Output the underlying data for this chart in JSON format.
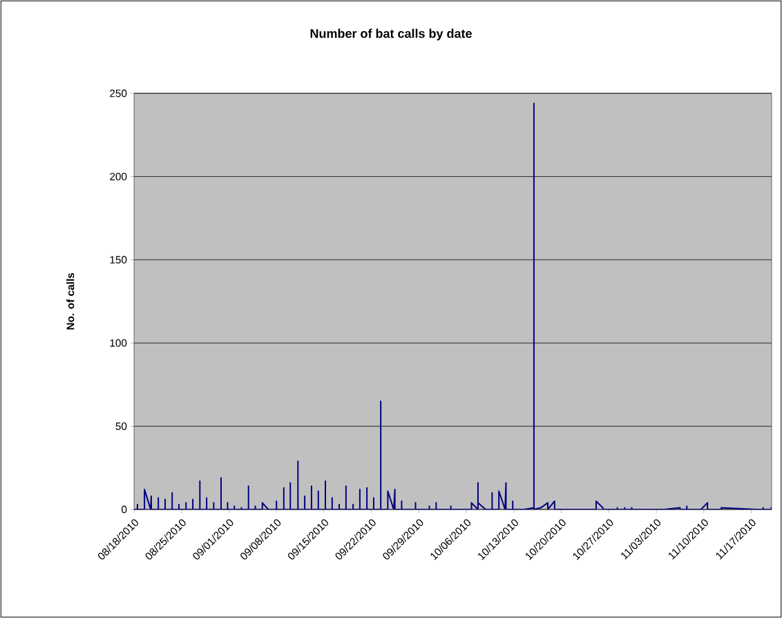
{
  "chart_data": {
    "type": "line",
    "title": "Number of bat calls by date",
    "ylabel": "No. of calls",
    "color": "#000080",
    "x": [
      "2010-08-18T00:00",
      "2010-08-18T12:00",
      "2010-08-18T12:00",
      "2010-08-18T12:00",
      "2010-08-19T13:00",
      "2010-08-19T13:00",
      "2010-08-20T11:00",
      "2010-08-20T13:00",
      "2010-08-20T13:00",
      "2010-08-21T14:00",
      "2010-08-21T14:00",
      "2010-08-21T14:00",
      "2010-08-22T14:00",
      "2010-08-22T14:00",
      "2010-08-22T14:00",
      "2010-08-23T15:00",
      "2010-08-23T15:00",
      "2010-08-23T15:00",
      "2010-08-24T15:00",
      "2010-08-24T15:00",
      "2010-08-24T15:00",
      "2010-08-25T16:00",
      "2010-08-25T16:00",
      "2010-08-25T16:00",
      "2010-08-26T16:00",
      "2010-08-26T16:00",
      "2010-08-26T16:00",
      "2010-08-27T17:00",
      "2010-08-27T17:00",
      "2010-08-27T17:00",
      "2010-08-28T17:00",
      "2010-08-28T17:00",
      "2010-08-28T17:00",
      "2010-08-29T18:00",
      "2010-08-29T18:00",
      "2010-08-29T18:00",
      "2010-08-30T20:00",
      "2010-08-30T20:00",
      "2010-08-30T20:00",
      "2010-08-31T19:00",
      "2010-08-31T19:00",
      "2010-08-31T19:00",
      "2010-09-01T19:00",
      "2010-09-01T19:00",
      "2010-09-01T19:00",
      "2010-09-02T20:00",
      "2010-09-02T20:00",
      "2010-09-02T20:00",
      "2010-09-03T21:00",
      "2010-09-03T21:00",
      "2010-09-03T21:00",
      "2010-09-04T21:00",
      "2010-09-04T21:00",
      "2010-09-04T21:00",
      "2010-09-05T22:00",
      "2010-09-05T22:00",
      "2010-09-06T19:00",
      "2010-09-08T00:00",
      "2010-09-08T00:00",
      "2010-09-08T00:00",
      "2010-09-09T02:00",
      "2010-09-09T02:00",
      "2010-09-09T02:00",
      "2010-09-10T01:00",
      "2010-09-10T01:00",
      "2010-09-10T01:00",
      "2010-09-11T04:00",
      "2010-09-11T04:00",
      "2010-09-11T04:00",
      "2010-09-12T04:00",
      "2010-09-12T04:00",
      "2010-09-12T04:00",
      "2010-09-13T04:00",
      "2010-09-13T04:00",
      "2010-09-13T04:00",
      "2010-09-14T04:00",
      "2010-09-14T04:00",
      "2010-09-14T04:00",
      "2010-09-15T05:00",
      "2010-09-15T05:00",
      "2010-09-15T05:00",
      "2010-09-16T05:00",
      "2010-09-16T05:00",
      "2010-09-16T05:00",
      "2010-09-17T06:00",
      "2010-09-17T06:00",
      "2010-09-17T06:00",
      "2010-09-18T06:00",
      "2010-09-18T06:00",
      "2010-09-18T06:00",
      "2010-09-19T07:00",
      "2010-09-19T07:00",
      "2010-09-19T07:00",
      "2010-09-20T07:00",
      "2010-09-20T07:00",
      "2010-09-20T07:00",
      "2010-09-21T08:00",
      "2010-09-21T08:00",
      "2010-09-21T08:00",
      "2010-09-22T08:00",
      "2010-09-22T08:00",
      "2010-09-22T08:00",
      "2010-09-23T09:00",
      "2010-09-23T09:00",
      "2010-09-23T09:00",
      "2010-09-24T10:00",
      "2010-09-24T10:00",
      "2010-09-25T07:00",
      "2010-09-25T11:00",
      "2010-09-25T11:00",
      "2010-09-26T11:00",
      "2010-09-26T11:00",
      "2010-09-26T11:00",
      "2010-09-28T12:00",
      "2010-09-28T12:00",
      "2010-09-28T12:00",
      "2010-09-30T13:00",
      "2010-09-30T13:00",
      "2010-09-30T13:00",
      "2010-10-01T13:00",
      "2010-10-01T13:00",
      "2010-10-01T13:00",
      "2010-10-03T17:00",
      "2010-10-03T17:00",
      "2010-10-03T17:00",
      "2010-10-06T18:00",
      "2010-10-06T18:00",
      "2010-10-07T17:00",
      "2010-10-07T17:00",
      "2010-10-07T17:00",
      "2010-10-08T20:00",
      "2010-10-09T19:00",
      "2010-10-09T19:00",
      "2010-10-09T19:00",
      "2010-10-10T19:00",
      "2010-10-10T19:00",
      "2010-10-11T17:00",
      "2010-10-11T20:00",
      "2010-10-11T20:00",
      "2010-10-12T20:00",
      "2010-10-12T20:00",
      "2010-10-12T20:00",
      "2010-10-14T12:00",
      "2010-10-15T23:00",
      "2010-10-15T23:00",
      "2010-10-15T23:00",
      "2010-10-16T23:00",
      "2010-10-18T00:00",
      "2010-10-18T00:00",
      "2010-10-19T00:00",
      "2010-10-19T00:00",
      "2010-10-25T03:00",
      "2010-10-25T03:00",
      "2010-10-26T03:00",
      "2010-10-26T03:00",
      "2010-10-28T06:00",
      "2010-10-28T06:00",
      "2010-10-28T06:00",
      "2010-10-29T08:00",
      "2010-10-29T08:00",
      "2010-10-29T08:00",
      "2010-10-30T09:00",
      "2010-10-30T09:00",
      "2010-10-30T09:00",
      "2010-11-04T05:00",
      "2010-11-06T12:00",
      "2010-11-06T12:00",
      "2010-11-07T12:00",
      "2010-11-07T12:00",
      "2010-11-07T12:00",
      "2010-11-09T14:00",
      "2010-11-10T13:00",
      "2010-11-10T13:00",
      "2010-11-12T14:00",
      "2010-11-12T14:00",
      "2010-11-17T17:00",
      "2010-11-18T18:00",
      "2010-11-18T18:00",
      "2010-11-18T18:00",
      "2010-11-19T23:00",
      "2010-11-19T23:00",
      "2010-11-19T23:00",
      "2010-11-20T00:00"
    ],
    "values": [
      0,
      0,
      3,
      0,
      0,
      12,
      0,
      8,
      0,
      0,
      7,
      0,
      0,
      6,
      0,
      0,
      10,
      0,
      0,
      3,
      0,
      0,
      4,
      0,
      0,
      6,
      0,
      0,
      17,
      0,
      0,
      7,
      0,
      0,
      4,
      0,
      0,
      19,
      0,
      0,
      4,
      0,
      0,
      2,
      0,
      0,
      1,
      0,
      0,
      14,
      0,
      0,
      2,
      0,
      0,
      4,
      0,
      0,
      5,
      0,
      0,
      13,
      0,
      0,
      16,
      0,
      0,
      29,
      0,
      0,
      8,
      0,
      0,
      14,
      0,
      0,
      11,
      0,
      0,
      17,
      0,
      0,
      7,
      0,
      0,
      3,
      0,
      0,
      14,
      0,
      0,
      3,
      0,
      0,
      12,
      0,
      0,
      13,
      0,
      0,
      7,
      0,
      0,
      65,
      0,
      0,
      11,
      0,
      12,
      0,
      0,
      5,
      0,
      0,
      4,
      0,
      0,
      2,
      0,
      0,
      4,
      0,
      0,
      2,
      0,
      0,
      4,
      0,
      16,
      4,
      0,
      0,
      10,
      0,
      0,
      11,
      0,
      16,
      0,
      0,
      5,
      0,
      0,
      1,
      244,
      0,
      1,
      4,
      0,
      5,
      0,
      0,
      5,
      1,
      0,
      0,
      1,
      0,
      0,
      1,
      0,
      0,
      1,
      0,
      0,
      1,
      0,
      0,
      2,
      0,
      0,
      4,
      0,
      0,
      1,
      0,
      0,
      1,
      0,
      0,
      1,
      0,
      0
    ],
    "xlim": [
      "2010-08-18",
      "2010-11-20"
    ],
    "xticks": [
      {
        "value": "2010-08-18",
        "label": "08/18/2010"
      },
      {
        "value": "2010-08-25",
        "label": "08/25/2010"
      },
      {
        "value": "2010-09-01",
        "label": "09/01/2010"
      },
      {
        "value": "2010-09-08",
        "label": "09/08/2010"
      },
      {
        "value": "2010-09-15",
        "label": "09/15/2010"
      },
      {
        "value": "2010-09-22",
        "label": "09/22/2010"
      },
      {
        "value": "2010-09-29",
        "label": "09/29/2010"
      },
      {
        "value": "2010-10-06",
        "label": "10/06/2010"
      },
      {
        "value": "2010-10-13",
        "label": "10/13/2010"
      },
      {
        "value": "2010-10-20",
        "label": "10/20/2010"
      },
      {
        "value": "2010-10-27",
        "label": "10/27/2010"
      },
      {
        "value": "2010-11-03",
        "label": "11/03/2010"
      },
      {
        "value": "2010-11-10",
        "label": "11/10/2010"
      },
      {
        "value": "2010-11-17",
        "label": "11/17/2010"
      }
    ],
    "ylim": [
      0,
      250
    ],
    "yticks": [
      0,
      50,
      100,
      150,
      200,
      250
    ],
    "grid": "y"
  }
}
